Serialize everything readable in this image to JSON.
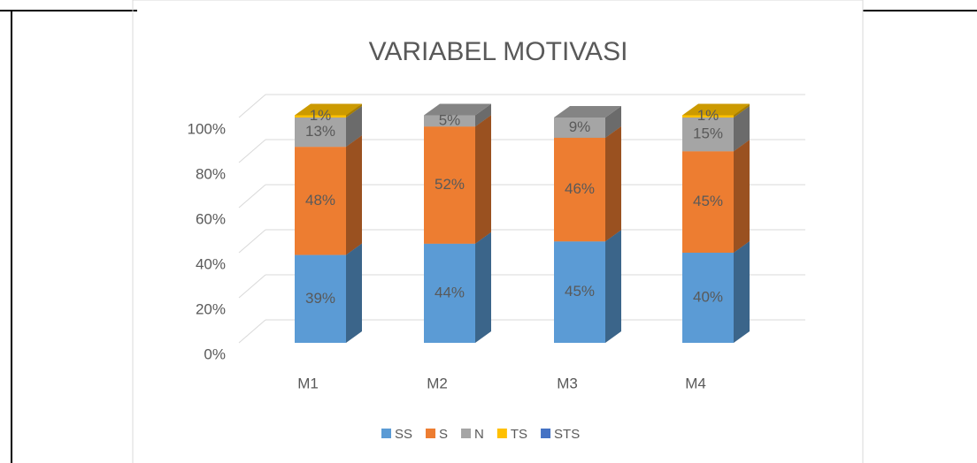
{
  "chart_data": {
    "type": "bar3d-stacked",
    "title": "VARIABEL MOTIVASI",
    "categories": [
      "M1",
      "M2",
      "M3",
      "M4"
    ],
    "series": [
      {
        "name": "SS",
        "color": "#5b9bd5",
        "values": [
          39,
          44,
          45,
          40
        ],
        "value_labels": [
          "39%",
          "44%",
          "45%",
          "40%"
        ]
      },
      {
        "name": "S",
        "color": "#ed7d31",
        "values": [
          48,
          52,
          46,
          45
        ],
        "value_labels": [
          "48%",
          "52%",
          "46%",
          "45%"
        ]
      },
      {
        "name": "N",
        "color": "#a5a5a5",
        "values": [
          13,
          5,
          9,
          15
        ],
        "value_labels": [
          "13%",
          "5%",
          "9%",
          "15%"
        ]
      },
      {
        "name": "TS",
        "color": "#ffc000",
        "values": [
          1,
          null,
          null,
          1
        ],
        "value_labels": [
          "1%",
          null,
          null,
          "1%"
        ]
      },
      {
        "name": "STS",
        "color": "#4472c4",
        "values": [
          null,
          null,
          null,
          null
        ],
        "value_labels": [
          null,
          null,
          null,
          null
        ]
      }
    ],
    "ylim": [
      0,
      100
    ],
    "yticks": [
      {
        "value": 0,
        "label": "0%"
      },
      {
        "value": 20,
        "label": "20%"
      },
      {
        "value": 40,
        "label": "40%"
      },
      {
        "value": 60,
        "label": "60%"
      },
      {
        "value": 80,
        "label": "80%"
      },
      {
        "value": 100,
        "label": "100%"
      }
    ],
    "grid": true,
    "legend": "bottom"
  }
}
